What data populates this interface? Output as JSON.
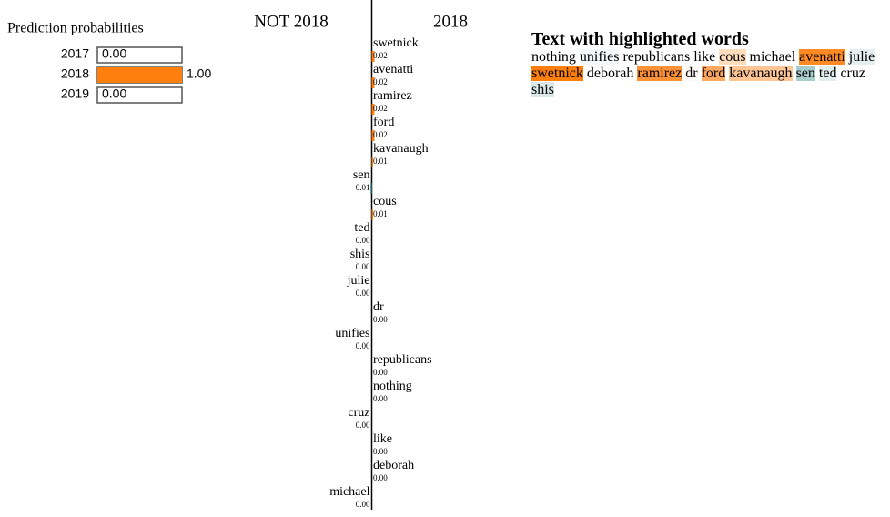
{
  "probabilities": {
    "title": "Prediction probabilities",
    "items": [
      {
        "label": "2017",
        "value": 0,
        "value_label": "0.00",
        "color": "#1f77b4"
      },
      {
        "label": "2018",
        "value": 1,
        "value_label": "1.00",
        "color": "#ff7f0e"
      },
      {
        "label": "2019",
        "value": 0,
        "value_label": "0.00",
        "color": "#2ca02c"
      }
    ]
  },
  "features": {
    "classes": [
      "NOT 2018",
      "2018"
    ],
    "colors": [
      "#5f9ea0",
      "#ff7f0e"
    ],
    "items": [
      {
        "name": "swetnick",
        "value": 0.02,
        "value_label": "0.02",
        "side": 1
      },
      {
        "name": "avenatti",
        "value": 0.02,
        "value_label": "0.02",
        "side": 1
      },
      {
        "name": "ramirez",
        "value": 0.02,
        "value_label": "0.02",
        "side": 1
      },
      {
        "name": "ford",
        "value": 0.02,
        "value_label": "0.02",
        "side": 1
      },
      {
        "name": "kavanaugh",
        "value": 0.01,
        "value_label": "0.01",
        "side": 1
      },
      {
        "name": "sen",
        "value": 0.01,
        "value_label": "0.01",
        "side": 0
      },
      {
        "name": "cous",
        "value": 0.01,
        "value_label": "0.01",
        "side": 1
      },
      {
        "name": "ted",
        "value": 0,
        "value_label": "0.00",
        "side": 0
      },
      {
        "name": "shis",
        "value": 0,
        "value_label": "0.00",
        "side": 0
      },
      {
        "name": "julie",
        "value": 0,
        "value_label": "0.00",
        "side": 0
      },
      {
        "name": "dr",
        "value": 0,
        "value_label": "0.00",
        "side": 1
      },
      {
        "name": "unifies",
        "value": 0,
        "value_label": "0.00",
        "side": 0
      },
      {
        "name": "republicans",
        "value": 0,
        "value_label": "0.00",
        "side": 1
      },
      {
        "name": "nothing",
        "value": 0,
        "value_label": "0.00",
        "side": 1
      },
      {
        "name": "cruz",
        "value": 0,
        "value_label": "0.00",
        "side": 0
      },
      {
        "name": "like",
        "value": 0,
        "value_label": "0.00",
        "side": 1
      },
      {
        "name": "deborah",
        "value": 0,
        "value_label": "0.00",
        "side": 1
      },
      {
        "name": "michael",
        "value": 0,
        "value_label": "0.00",
        "side": 0
      }
    ]
  },
  "text": {
    "title": "Text with highlighted words",
    "words": [
      {
        "word": "nothing",
        "color": null
      },
      {
        "word": "unifies",
        "color": "#f3f8f8"
      },
      {
        "word": "republicans",
        "color": null
      },
      {
        "word": "like",
        "color": null
      },
      {
        "word": "cous",
        "color": "#ffdcbc"
      },
      {
        "word": "michael",
        "color": null
      },
      {
        "word": "avenatti",
        "color": "#ff8a24"
      },
      {
        "word": "julie",
        "color": "#e6efef"
      },
      {
        "word": "swetnick",
        "color": "#ff7f0e"
      },
      {
        "word": "deborah",
        "color": null
      },
      {
        "word": "ramirez",
        "color": "#ff9138"
      },
      {
        "word": "dr",
        "color": "#fff8f2"
      },
      {
        "word": "ford",
        "color": "#ffa862"
      },
      {
        "word": "kavanaugh",
        "color": "#ffc594"
      },
      {
        "word": "sen",
        "color": "#a9cccd"
      },
      {
        "word": "ted",
        "color": "#e2eded"
      },
      {
        "word": "cruz",
        "color": null
      },
      {
        "word": "shis",
        "color": "#dae8e8"
      }
    ]
  }
}
